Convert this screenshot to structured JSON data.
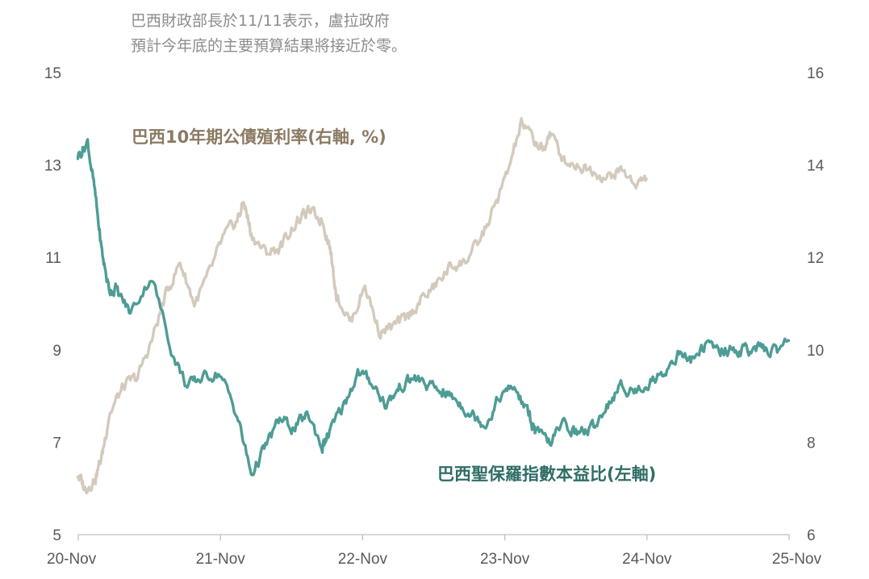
{
  "subtitle": {
    "line1": "巴西財政部長於11/11表示，盧拉政府",
    "line2": "預計今年底的主要預算結果將接近於零。"
  },
  "colors": {
    "pe": "#4e9c95",
    "pe_label": "#2f6d66",
    "yield": "#d3cabc",
    "yield_label": "#8b7a63",
    "axis": "#bfbfbf",
    "tick_text": "#595959"
  },
  "chart_data": {
    "type": "line",
    "title": "",
    "x_tick_labels": [
      "20-Nov",
      "21-Nov",
      "22-Nov",
      "23-Nov",
      "24-Nov",
      "25-Nov"
    ],
    "x_range": [
      "2020-11",
      "2025-11"
    ],
    "left_axis": {
      "ticks": [
        5,
        7,
        9,
        11,
        13,
        15
      ],
      "ylim": [
        5,
        15
      ]
    },
    "right_axis": {
      "ticks": [
        6,
        8,
        10,
        12,
        14,
        16
      ],
      "ylim": [
        6,
        16
      ]
    },
    "series": [
      {
        "name": "巴西聖保羅指數本益比(左軸)",
        "axis": "left",
        "color": "#4e9c95",
        "x": [
          2020.83,
          2020.9,
          2020.95,
          2021.0,
          2021.05,
          2021.1,
          2021.2,
          2021.35,
          2021.5,
          2021.6,
          2021.7,
          2021.83,
          2021.95,
          2022.05,
          2022.15,
          2022.25,
          2022.35,
          2022.45,
          2022.55,
          2022.6,
          2022.7,
          2022.8,
          2022.9,
          2023.0,
          2023.1,
          2023.2,
          2023.3,
          2023.4,
          2023.5,
          2023.6,
          2023.7,
          2023.8,
          2023.9,
          2024.0,
          2024.05,
          2024.15,
          2024.25,
          2024.35,
          2024.45,
          2024.55,
          2024.65,
          2024.75,
          2024.85,
          2024.95,
          2025.05,
          2025.15,
          2025.25,
          2025.35,
          2025.45,
          2025.55,
          2025.65,
          2025.75,
          2025.83
        ],
        "values": [
          13.2,
          13.5,
          12.4,
          11.1,
          10.3,
          10.3,
          9.8,
          10.6,
          8.9,
          8.2,
          8.4,
          8.5,
          7.6,
          6.3,
          6.9,
          7.5,
          7.3,
          7.6,
          6.9,
          7.2,
          7.8,
          8.5,
          8.3,
          7.8,
          8.2,
          8.4,
          8.2,
          8.1,
          7.9,
          7.6,
          7.4,
          8.0,
          8.2,
          7.6,
          7.2,
          7.0,
          7.4,
          7.2,
          7.3,
          7.8,
          8.2,
          8.1,
          8.3,
          8.5,
          8.9,
          8.8,
          9.1,
          9.0,
          9.0,
          9.0,
          9.0,
          9.0,
          9.2
        ]
      },
      {
        "name": "巴西10年期公債殖利率(右軸, %)",
        "axis": "right",
        "color": "#d3cabc",
        "x": [
          2020.83,
          2020.88,
          2020.95,
          2021.0,
          2021.05,
          2021.15,
          2021.25,
          2021.35,
          2021.45,
          2021.55,
          2021.65,
          2021.75,
          2021.85,
          2021.95,
          2022.0,
          2022.05,
          2022.15,
          2022.25,
          2022.35,
          2022.45,
          2022.55,
          2022.6,
          2022.65,
          2022.75,
          2022.85,
          2022.95,
          2023.05,
          2023.15,
          2023.25,
          2023.35,
          2023.45,
          2023.55,
          2023.65,
          2023.75,
          2023.85,
          2023.95,
          2024.05,
          2024.1,
          2024.15,
          2024.25,
          2024.35,
          2024.45,
          2024.55,
          2024.65,
          2024.75,
          2024.83
        ],
        "values": [
          7.3,
          7.0,
          7.2,
          7.7,
          8.6,
          9.2,
          9.4,
          10.2,
          11.2,
          11.9,
          11.0,
          11.6,
          12.4,
          12.8,
          13.2,
          12.5,
          12.1,
          12.2,
          12.7,
          13.0,
          12.8,
          12.3,
          11.2,
          10.6,
          11.4,
          10.4,
          10.5,
          10.7,
          11.1,
          11.4,
          11.8,
          11.9,
          12.3,
          13.0,
          13.8,
          14.9,
          14.5,
          14.3,
          14.7,
          14.1,
          14.0,
          13.9,
          13.7,
          13.9,
          13.6,
          13.7
        ]
      }
    ]
  },
  "labels": {
    "yield": "巴西10年期公債殖利率(右軸, %)",
    "pe": "巴西聖保羅指數本益比(左軸)"
  }
}
